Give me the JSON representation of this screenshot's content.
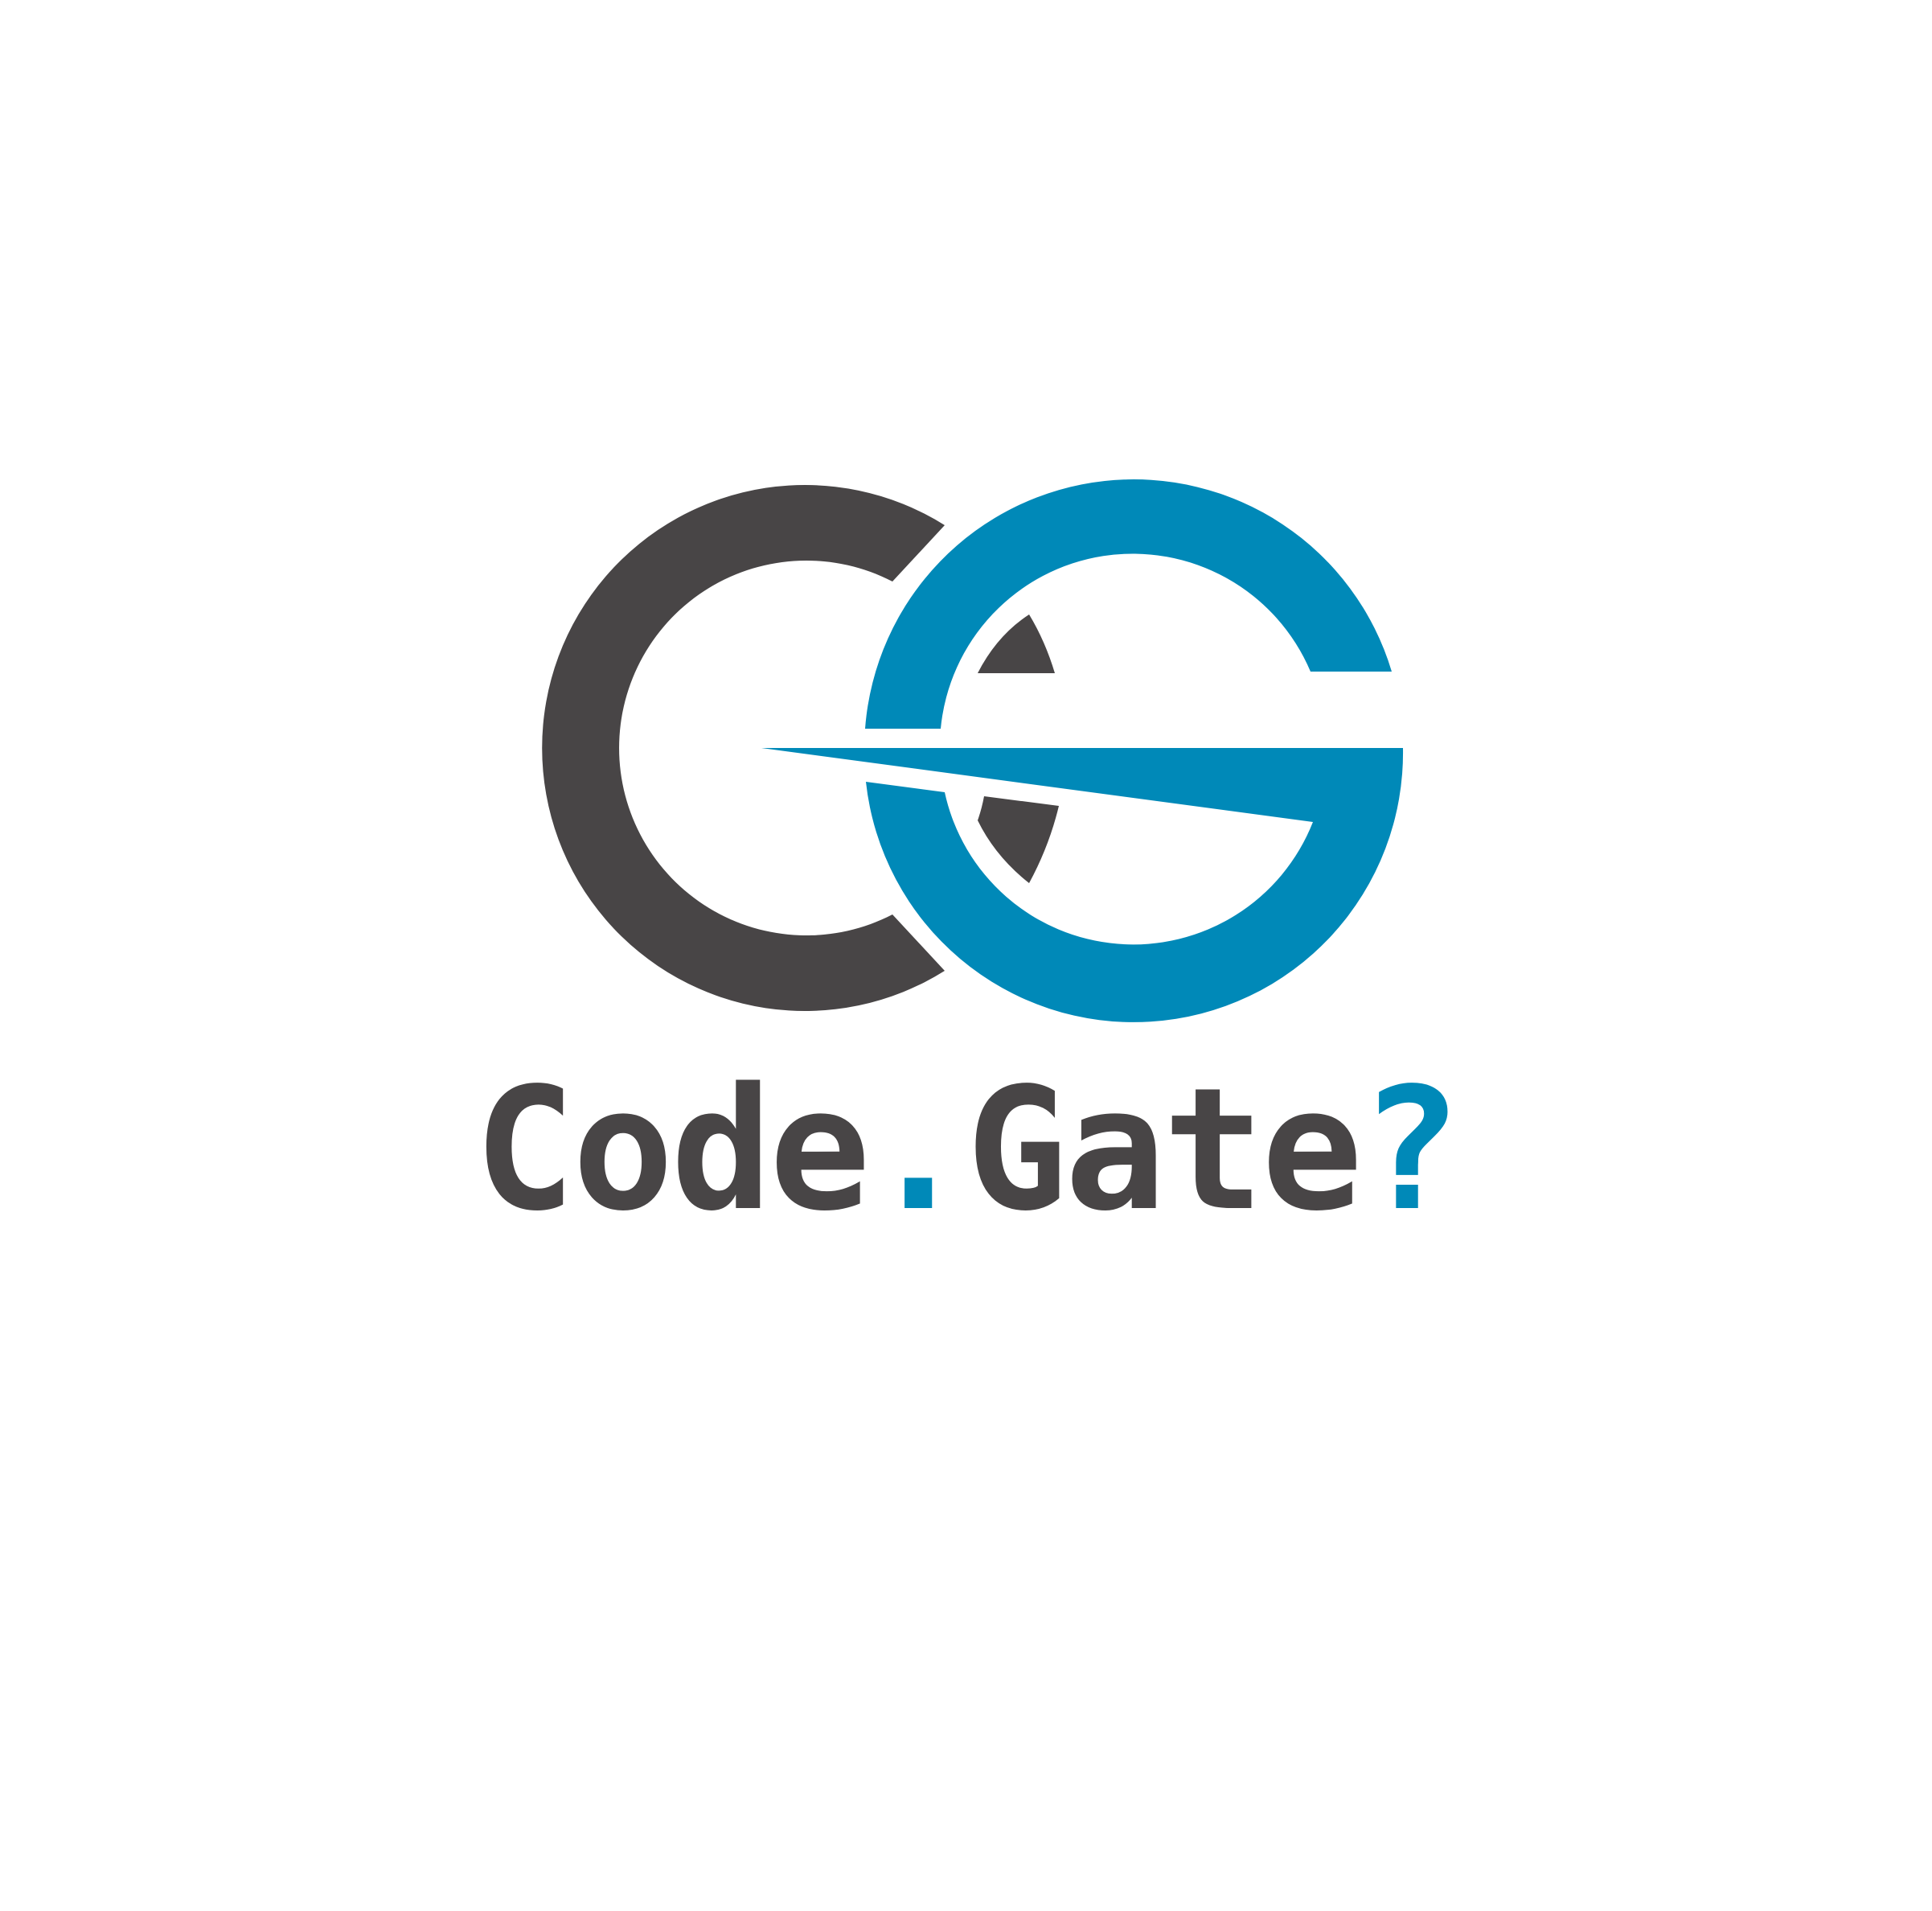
{
  "brand": {
    "word_code": "Code",
    "separator": ".",
    "word_gate": "Gate",
    "suffix": "?"
  },
  "colors": {
    "background": "#ffffff",
    "dark": "#484546",
    "blue": "#0089b8"
  },
  "icons": {
    "emblem": "cg-monogram-icon"
  }
}
